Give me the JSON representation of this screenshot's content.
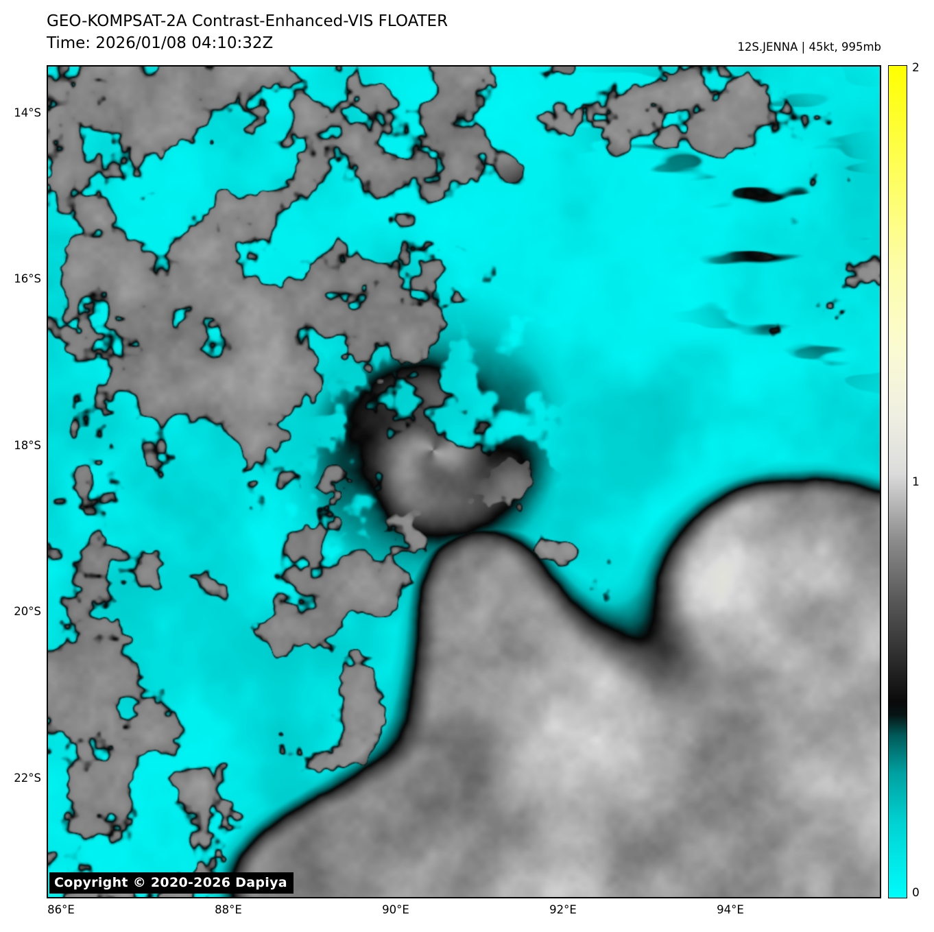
{
  "header": {
    "title_line1": "GEO-KOMPSAT-2A Contrast-Enhanced-VIS FLOATER",
    "title_line2": "Time: 2026/01/08 04:10:32Z",
    "storm_label": "12S.JENNA | 45kt, 995mb"
  },
  "axes": {
    "y_ticks": [
      "14°S",
      "16°S",
      "18°S",
      "20°S",
      "22°S"
    ],
    "x_ticks": [
      "86°E",
      "88°E",
      "90°E",
      "92°E",
      "94°E"
    ]
  },
  "colorbar": {
    "tick_top": "2",
    "tick_mid": "1",
    "tick_bottom": "0"
  },
  "copyright": "Copyright © 2020-2026 Dapiya",
  "scene": {
    "background_cyan": "#00dcdc",
    "colorbar_top_color": "#ffff00",
    "colorbar_bottom_color": "#00fcfc",
    "cyclone_center": {
      "u": 0.463,
      "v": 0.462
    },
    "colormap_stops": [
      [
        0.0,
        0,
        252,
        252
      ],
      [
        0.22,
        0,
        200,
        200
      ],
      [
        0.38,
        0,
        90,
        90
      ],
      [
        0.46,
        6,
        6,
        6
      ],
      [
        0.55,
        58,
        58,
        58
      ],
      [
        0.75,
        133,
        133,
        133
      ],
      [
        1.0,
        220,
        220,
        220
      ],
      [
        1.25,
        250,
        250,
        214
      ],
      [
        2.0,
        255,
        255,
        0
      ]
    ],
    "solid_masks": [
      [
        0.72,
        0.97,
        0.3,
        0.15,
        1.05
      ],
      [
        0.97,
        0.8,
        0.17,
        0.22,
        0.95
      ],
      [
        0.9,
        0.6,
        0.16,
        0.1,
        0.85
      ],
      [
        0.57,
        0.76,
        0.14,
        0.11,
        0.8
      ],
      [
        0.48,
        0.96,
        0.2,
        0.1,
        0.85
      ],
      [
        0.52,
        0.62,
        0.09,
        0.09,
        0.6
      ],
      [
        0.34,
        1.0,
        0.12,
        0.07,
        0.55
      ]
    ],
    "broken_masks": [
      [
        0.1,
        0.2,
        0.22,
        0.22,
        0.85
      ],
      [
        0.35,
        0.07,
        0.25,
        0.1,
        0.85
      ],
      [
        0.06,
        0.55,
        0.15,
        0.22,
        0.9
      ],
      [
        0.25,
        0.78,
        0.2,
        0.14,
        0.95
      ],
      [
        0.13,
        0.95,
        0.18,
        0.1,
        0.8
      ],
      [
        0.63,
        0.08,
        0.18,
        0.09,
        0.5
      ],
      [
        0.8,
        0.13,
        0.1,
        0.1,
        0.55
      ],
      [
        0.985,
        0.33,
        0.1,
        0.16,
        0.8
      ],
      [
        0.9,
        0.05,
        0.12,
        0.07,
        0.6
      ],
      [
        1.0,
        0.5,
        0.06,
        0.1,
        0.5
      ]
    ],
    "suppressors": [
      [
        0.67,
        0.36,
        0.13,
        0.15,
        0.95
      ],
      [
        0.79,
        0.5,
        0.16,
        0.11,
        0.85
      ],
      [
        0.62,
        0.2,
        0.13,
        0.12,
        0.75
      ],
      [
        0.87,
        0.42,
        0.12,
        0.1,
        0.6
      ]
    ],
    "streak_masks": [
      [
        0.88,
        0.28,
        0.13,
        0.26,
        0.85
      ],
      [
        0.72,
        0.12,
        0.1,
        0.12,
        0.5
      ]
    ],
    "speckle_ring": {
      "r0": 0.185,
      "sigma": 0.11,
      "weight": 1.0
    },
    "broken_floor": 0.2
  }
}
